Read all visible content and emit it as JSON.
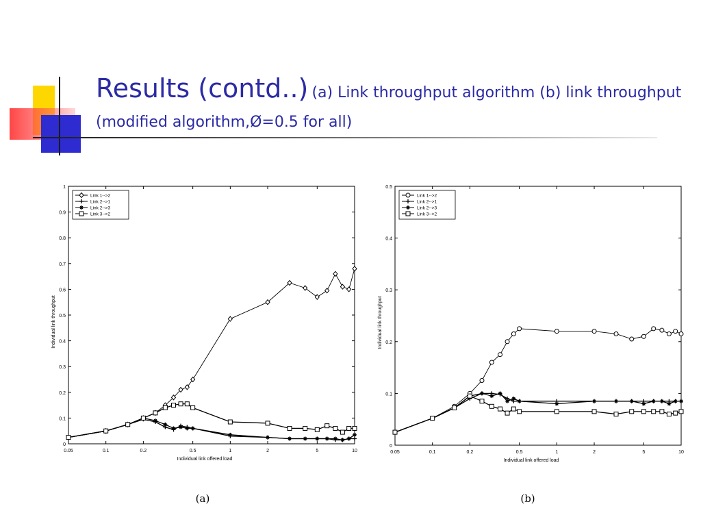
{
  "slide": {
    "title_main": "Results (contd..)",
    "title_sub": "(a) Link throughput algorithm (b) link throughput (modified algorithm,Ø=0.5 for all)"
  },
  "colors": {
    "title": "#2b2aa6",
    "deco_yellow": "#ffd700",
    "deco_blue": "#2e2bd1",
    "deco_red": "#ff3c3c",
    "line": "#000000"
  },
  "chart_data": [
    {
      "type": "line",
      "panel_label": "(a)",
      "xlabel": "Individual link offered load",
      "ylabel": "Individual link throughput",
      "x_scale": "log",
      "xlim": [
        0.05,
        10
      ],
      "ylim": [
        0,
        1
      ],
      "x_ticks": [
        0.05,
        0.1,
        0.2,
        0.5,
        1,
        2,
        5,
        10
      ],
      "x_tick_labels": [
        "0.05",
        "0.1",
        "0.2",
        "0.5",
        "1",
        "2",
        "5",
        "10"
      ],
      "y_ticks": [
        0,
        0.1,
        0.2,
        0.3,
        0.4,
        0.5,
        0.6,
        0.7,
        0.8,
        0.9,
        1
      ],
      "y_tick_labels": [
        "0",
        "0.1",
        "0.2",
        "0.3",
        "0.4",
        "0.5",
        "0.6",
        "0.7",
        "0.8",
        "0.9",
        "1"
      ],
      "legend_position": "top-left",
      "series": [
        {
          "name": "Link 1-->2",
          "marker": "diamond",
          "x": [
            0.05,
            0.1,
            0.15,
            0.2,
            0.25,
            0.3,
            0.35,
            0.4,
            0.45,
            0.5,
            1,
            2,
            3,
            4,
            5,
            6,
            7,
            8,
            9,
            10
          ],
          "y": [
            0.025,
            0.05,
            0.075,
            0.1,
            0.12,
            0.15,
            0.18,
            0.21,
            0.22,
            0.25,
            0.485,
            0.55,
            0.625,
            0.605,
            0.57,
            0.595,
            0.66,
            0.61,
            0.6,
            0.68
          ]
        },
        {
          "name": "Link 2-->1",
          "marker": "plus",
          "x": [
            0.05,
            0.1,
            0.15,
            0.2,
            0.25,
            0.3,
            0.35,
            0.4,
            0.45,
            0.5,
            1,
            2,
            3,
            4,
            5,
            6,
            7,
            8,
            9,
            10
          ],
          "y": [
            0.025,
            0.05,
            0.075,
            0.095,
            0.085,
            0.065,
            0.055,
            0.07,
            0.065,
            0.06,
            0.03,
            0.025,
            0.02,
            0.02,
            0.02,
            0.02,
            0.015,
            0.015,
            0.02,
            0.02
          ]
        },
        {
          "name": "Link 2-->3",
          "marker": "star",
          "x": [
            0.05,
            0.1,
            0.15,
            0.2,
            0.25,
            0.3,
            0.35,
            0.4,
            0.45,
            0.5,
            1,
            2,
            3,
            4,
            5,
            6,
            7,
            8,
            9,
            10
          ],
          "y": [
            0.025,
            0.05,
            0.075,
            0.1,
            0.09,
            0.075,
            0.06,
            0.065,
            0.06,
            0.06,
            0.035,
            0.025,
            0.02,
            0.02,
            0.02,
            0.02,
            0.02,
            0.015,
            0.02,
            0.035
          ]
        },
        {
          "name": "Link 3-->2",
          "marker": "square",
          "x": [
            0.05,
            0.1,
            0.15,
            0.2,
            0.25,
            0.3,
            0.35,
            0.4,
            0.45,
            0.5,
            1,
            2,
            3,
            4,
            5,
            6,
            7,
            8,
            9,
            10
          ],
          "y": [
            0.025,
            0.05,
            0.075,
            0.1,
            0.12,
            0.14,
            0.15,
            0.155,
            0.155,
            0.14,
            0.085,
            0.08,
            0.06,
            0.06,
            0.055,
            0.07,
            0.06,
            0.045,
            0.06,
            0.06
          ]
        }
      ]
    },
    {
      "type": "line",
      "panel_label": "(b)",
      "xlabel": "Individual link offered load",
      "ylabel": "Individual link throughput",
      "x_scale": "log",
      "xlim": [
        0.05,
        10
      ],
      "ylim": [
        0,
        0.5
      ],
      "x_ticks": [
        0.05,
        0.1,
        0.2,
        0.5,
        1,
        2,
        5,
        10
      ],
      "x_tick_labels": [
        "0.05",
        "0.1",
        "0.2",
        "0.5",
        "1",
        "2",
        "5",
        "10"
      ],
      "y_ticks": [
        0,
        0.1,
        0.2,
        0.3,
        0.4,
        0.5
      ],
      "y_tick_labels": [
        "0",
        "0.1",
        "0.2",
        "0.3",
        "0.4",
        "0.5"
      ],
      "legend_position": "top-left",
      "series": [
        {
          "name": "Link 1-->2",
          "marker": "circle",
          "x": [
            0.05,
            0.1,
            0.15,
            0.2,
            0.25,
            0.3,
            0.35,
            0.4,
            0.45,
            0.5,
            1,
            2,
            3,
            4,
            5,
            6,
            7,
            8,
            9,
            10
          ],
          "y": [
            0.025,
            0.052,
            0.075,
            0.1,
            0.125,
            0.16,
            0.175,
            0.2,
            0.215,
            0.225,
            0.22,
            0.22,
            0.215,
            0.205,
            0.21,
            0.225,
            0.222,
            0.215,
            0.22,
            0.215
          ]
        },
        {
          "name": "Link 2-->1",
          "marker": "plus",
          "x": [
            0.05,
            0.1,
            0.15,
            0.2,
            0.25,
            0.3,
            0.35,
            0.4,
            0.45,
            0.5,
            1,
            2,
            3,
            4,
            5,
            6,
            7,
            8,
            9,
            10
          ],
          "y": [
            0.025,
            0.052,
            0.072,
            0.09,
            0.1,
            0.1,
            0.098,
            0.09,
            0.085,
            0.085,
            0.085,
            0.085,
            0.085,
            0.085,
            0.085,
            0.085,
            0.085,
            0.085,
            0.085,
            0.085
          ]
        },
        {
          "name": "Link 2-->3",
          "marker": "star",
          "x": [
            0.05,
            0.1,
            0.15,
            0.2,
            0.25,
            0.3,
            0.35,
            0.4,
            0.45,
            0.5,
            1,
            2,
            3,
            4,
            5,
            6,
            7,
            8,
            9,
            10
          ],
          "y": [
            0.025,
            0.052,
            0.072,
            0.095,
            0.1,
            0.095,
            0.1,
            0.085,
            0.09,
            0.085,
            0.08,
            0.085,
            0.085,
            0.085,
            0.08,
            0.085,
            0.085,
            0.08,
            0.085,
            0.085
          ]
        },
        {
          "name": "Link 3-->2",
          "marker": "square",
          "x": [
            0.05,
            0.1,
            0.15,
            0.2,
            0.25,
            0.3,
            0.35,
            0.4,
            0.45,
            0.5,
            1,
            2,
            3,
            4,
            5,
            6,
            7,
            8,
            9,
            10
          ],
          "y": [
            0.025,
            0.052,
            0.072,
            0.095,
            0.085,
            0.075,
            0.07,
            0.062,
            0.07,
            0.065,
            0.065,
            0.065,
            0.06,
            0.065,
            0.065,
            0.065,
            0.065,
            0.06,
            0.062,
            0.065
          ]
        }
      ]
    }
  ]
}
